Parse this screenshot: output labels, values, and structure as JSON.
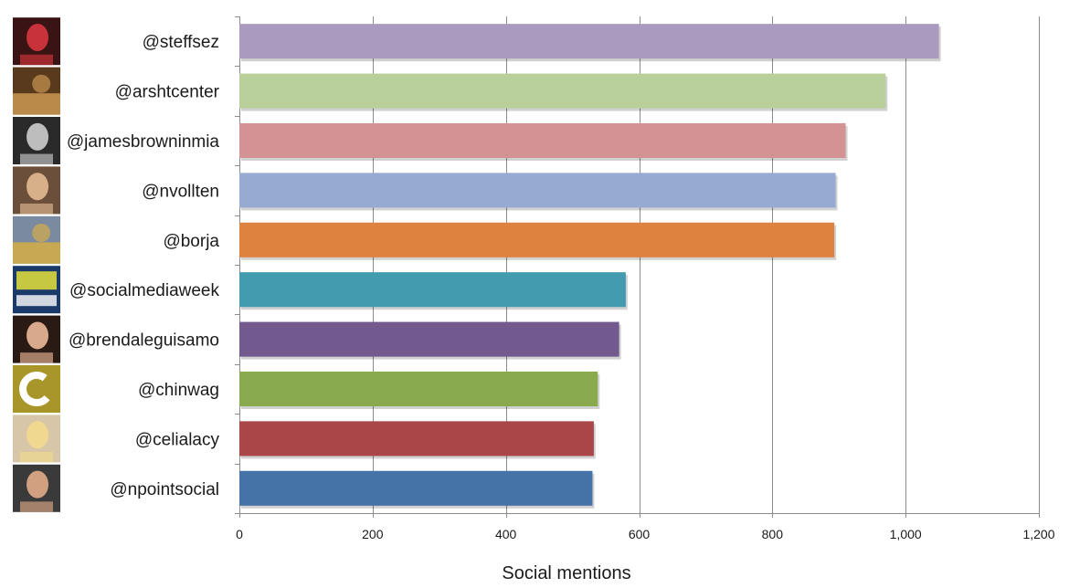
{
  "chart_data": {
    "type": "bar",
    "orientation": "horizontal",
    "title": "",
    "xlabel": "Social mentions",
    "ylabel": "",
    "xlim": [
      0,
      1200
    ],
    "xticks": [
      0,
      200,
      400,
      600,
      800,
      1000,
      1200
    ],
    "xtick_labels": [
      "0",
      "200",
      "400",
      "600",
      "800",
      "1,000",
      "1,200"
    ],
    "grid": "vertical",
    "categories": [
      "@steffsez",
      "@arshtcenter",
      "@jamesbrowninmia",
      "@nvollten",
      "@borja",
      "@socialmediaweek",
      "@brendaleguisamo",
      "@chinwag",
      "@celialacy",
      "@npointsocial"
    ],
    "values": [
      1050,
      970,
      910,
      895,
      893,
      580,
      570,
      538,
      532,
      530
    ],
    "colors": [
      "#a89bbf",
      "#b9d09a",
      "#d49294",
      "#96aad2",
      "#de8240",
      "#439bb0",
      "#725a8f",
      "#8aab4d",
      "#a94647",
      "#4572a7"
    ],
    "avatars": [
      {
        "name": "steffsez-avatar",
        "bg": "#3a1414",
        "fg": "#c8323a"
      },
      {
        "name": "arshtcenter-avatar",
        "bg": "#5a3a1c",
        "fg": "#d9a55a"
      },
      {
        "name": "jamesbrowninmia-avatar",
        "bg": "#2a2a2a",
        "fg": "#bdbdbd"
      },
      {
        "name": "nvollten-avatar",
        "bg": "#6b4f3a",
        "fg": "#d7b08a"
      },
      {
        "name": "borja-avatar",
        "bg": "#7a8aa0",
        "fg": "#e2b23a"
      },
      {
        "name": "socialmediaweek-avatar",
        "bg": "#1a3a6a",
        "fg": "#e6e23a"
      },
      {
        "name": "brendaleguisamo-avatar",
        "bg": "#2a1a14",
        "fg": "#d8a98a"
      },
      {
        "name": "chinwag-avatar",
        "bg": "#a8962a",
        "fg": "#ffffff"
      },
      {
        "name": "celialacy-avatar",
        "bg": "#d8c6a8",
        "fg": "#f0d890"
      },
      {
        "name": "npointsocial-avatar",
        "bg": "#3a3a3a",
        "fg": "#d0a080"
      }
    ]
  }
}
